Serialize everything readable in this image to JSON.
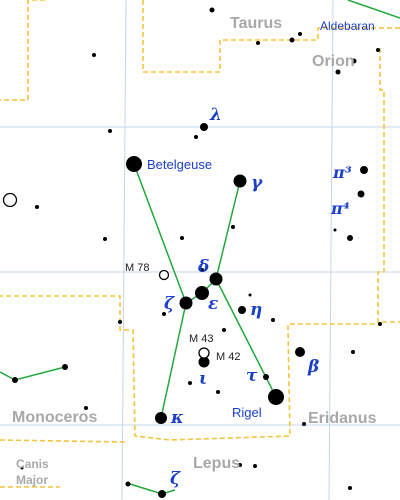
{
  "colors": {
    "background": "#ffffff",
    "grid": "#c5d6ea",
    "boundary": "#f2c43a",
    "constellation_line": "#22a83a",
    "star": "#000000",
    "star_label": "#1a3fc8",
    "constellation_label": "#a8a8a8",
    "dso_label": "#202020"
  },
  "constellation_names": {
    "taurus": "Taurus",
    "orion": "Orion",
    "monoceros": "Monoceros",
    "eridanus": "Eridanus",
    "lepus": "Lepus",
    "canis_major": [
      "Canis",
      "Major"
    ]
  },
  "star_names": {
    "aldebaran": "Aldebaran",
    "betelgeuse": "Betelgeuse",
    "rigel": "Rigel"
  },
  "greek_labels": {
    "lambda": "λ",
    "gamma": "γ",
    "pi3": "π³",
    "pi4": "π⁴",
    "delta": "δ",
    "epsilon": "ε",
    "zeta": "ζ",
    "eta": "η",
    "iota": "ι",
    "tau": "τ",
    "beta": "β",
    "kappa": "κ",
    "zeta_lepus": "ζ"
  },
  "deep_sky_labels": {
    "m78": "M 78",
    "m43": "M 43",
    "m42": "M 42"
  }
}
